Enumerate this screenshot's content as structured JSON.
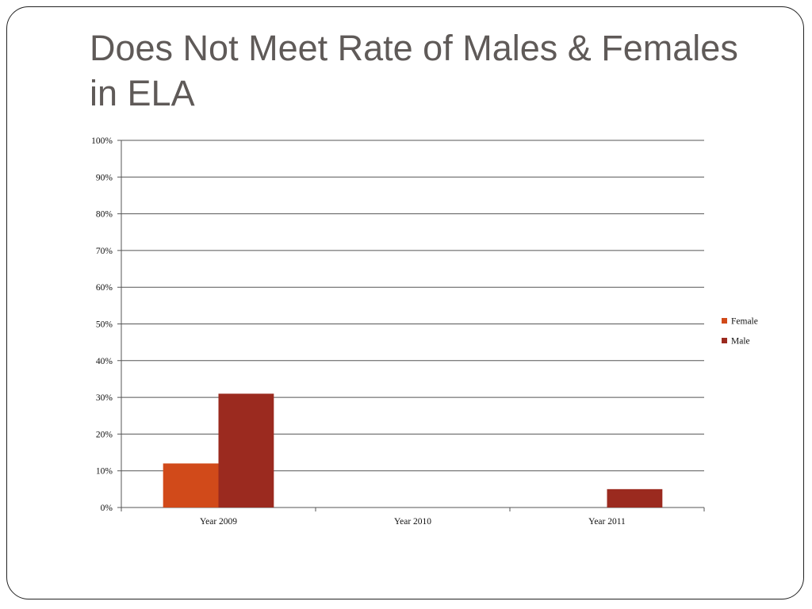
{
  "slide": {
    "title": "Does Not Meet Rate of Males & Females in ELA"
  },
  "colors": {
    "female": "#d14a1a",
    "male": "#9b2a1f",
    "grid": "#555555",
    "title": "#5f5a58"
  },
  "chart_data": {
    "type": "bar",
    "title": "",
    "xlabel": "",
    "ylabel": "",
    "categories": [
      "Year 2009",
      "Year 2010",
      "Year 2011"
    ],
    "series": [
      {
        "name": "Female",
        "values": [
          12,
          0,
          0
        ]
      },
      {
        "name": "Male",
        "values": [
          31,
          0,
          5
        ]
      }
    ],
    "ylim": [
      0,
      100
    ],
    "yticks": [
      0,
      10,
      20,
      30,
      40,
      50,
      60,
      70,
      80,
      90,
      100
    ],
    "ytick_suffix": "%",
    "grid": true,
    "legend": "right"
  }
}
